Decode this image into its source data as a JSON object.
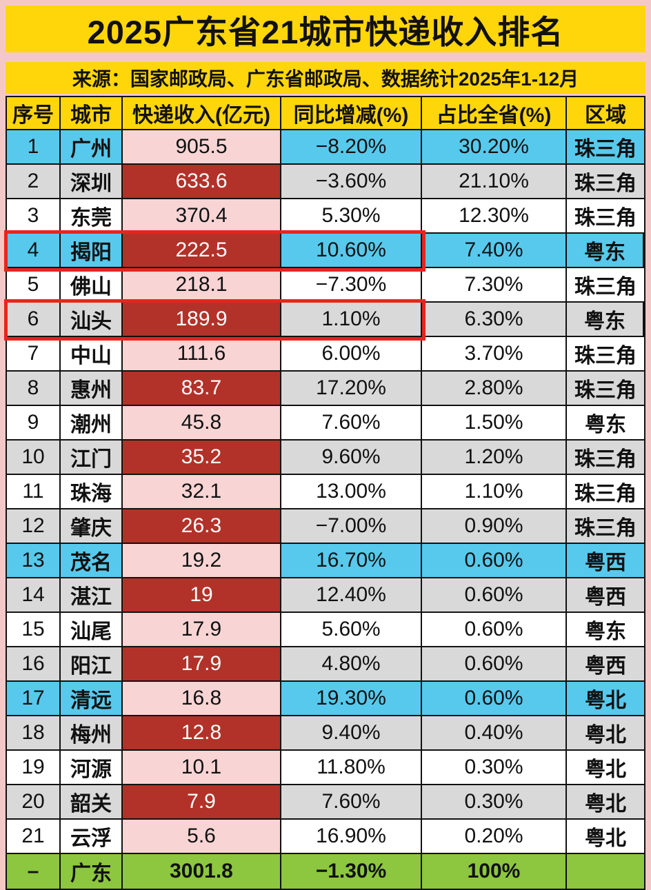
{
  "title": "2025广东省21城市快递收入排名",
  "source": "来源：国家邮政局、广东省邮政局、数据统计2025年1-12月",
  "colors": {
    "page_background": "#F5C8C8",
    "title_background": "#FFD60A",
    "row_cyan": "#57C9EC",
    "row_gray": "#D9D9D9",
    "row_white": "#FFFFFF",
    "revenue_pink": "#F8D4D4",
    "revenue_dark_red": "#B23229",
    "total_green": "#8DC63F",
    "highlight_border_red": "#E6251F"
  },
  "table": {
    "headers": [
      "序号",
      "城市",
      "快递收入(亿元)",
      "同比增减(%)",
      "占比全省(%)",
      "区域"
    ],
    "rows": [
      {
        "rank": "1",
        "city": "广州",
        "revenue": "905.5",
        "change": "−8.20%",
        "share": "30.20%",
        "region": "珠三角",
        "row_style": "cyan",
        "revenue_style": "pink",
        "highlight": false,
        "total": false
      },
      {
        "rank": "2",
        "city": "深圳",
        "revenue": "633.6",
        "change": "−3.60%",
        "share": "21.10%",
        "region": "珠三角",
        "row_style": "gray",
        "revenue_style": "red",
        "highlight": false,
        "total": false
      },
      {
        "rank": "3",
        "city": "东莞",
        "revenue": "370.4",
        "change": "5.30%",
        "share": "12.30%",
        "region": "珠三角",
        "row_style": "white",
        "revenue_style": "pink",
        "highlight": false,
        "total": false
      },
      {
        "rank": "4",
        "city": "揭阳",
        "revenue": "222.5",
        "change": "10.60%",
        "share": "7.40%",
        "region": "粤东",
        "row_style": "cyan",
        "revenue_style": "red",
        "highlight": true,
        "total": false
      },
      {
        "rank": "5",
        "city": "佛山",
        "revenue": "218.1",
        "change": "−7.30%",
        "share": "7.30%",
        "region": "珠三角",
        "row_style": "white",
        "revenue_style": "pink",
        "highlight": false,
        "total": false
      },
      {
        "rank": "6",
        "city": "汕头",
        "revenue": "189.9",
        "change": "1.10%",
        "share": "6.30%",
        "region": "粤东",
        "row_style": "gray",
        "revenue_style": "red",
        "highlight": true,
        "total": false
      },
      {
        "rank": "7",
        "city": "中山",
        "revenue": "111.6",
        "change": "6.00%",
        "share": "3.70%",
        "region": "珠三角",
        "row_style": "white",
        "revenue_style": "pink",
        "highlight": false,
        "total": false
      },
      {
        "rank": "8",
        "city": "惠州",
        "revenue": "83.7",
        "change": "17.20%",
        "share": "2.80%",
        "region": "珠三角",
        "row_style": "gray",
        "revenue_style": "red",
        "highlight": false,
        "total": false
      },
      {
        "rank": "9",
        "city": "潮州",
        "revenue": "45.8",
        "change": "7.60%",
        "share": "1.50%",
        "region": "粤东",
        "row_style": "white",
        "revenue_style": "pink",
        "highlight": false,
        "total": false
      },
      {
        "rank": "10",
        "city": "江门",
        "revenue": "35.2",
        "change": "9.60%",
        "share": "1.20%",
        "region": "珠三角",
        "row_style": "gray",
        "revenue_style": "red",
        "highlight": false,
        "total": false
      },
      {
        "rank": "11",
        "city": "珠海",
        "revenue": "32.1",
        "change": "13.00%",
        "share": "1.10%",
        "region": "珠三角",
        "row_style": "white",
        "revenue_style": "pink",
        "highlight": false,
        "total": false
      },
      {
        "rank": "12",
        "city": "肇庆",
        "revenue": "26.3",
        "change": "−7.00%",
        "share": "0.90%",
        "region": "珠三角",
        "row_style": "gray",
        "revenue_style": "red",
        "highlight": false,
        "total": false
      },
      {
        "rank": "13",
        "city": "茂名",
        "revenue": "19.2",
        "change": "16.70%",
        "share": "0.60%",
        "region": "粤西",
        "row_style": "cyan",
        "revenue_style": "pink",
        "highlight": false,
        "total": false
      },
      {
        "rank": "14",
        "city": "湛江",
        "revenue": "19",
        "change": "12.40%",
        "share": "0.60%",
        "region": "粤西",
        "row_style": "gray",
        "revenue_style": "red",
        "highlight": false,
        "total": false
      },
      {
        "rank": "15",
        "city": "汕尾",
        "revenue": "17.9",
        "change": "5.60%",
        "share": "0.60%",
        "region": "粤东",
        "row_style": "white",
        "revenue_style": "pink",
        "highlight": false,
        "total": false
      },
      {
        "rank": "16",
        "city": "阳江",
        "revenue": "17.9",
        "change": "4.80%",
        "share": "0.60%",
        "region": "粤西",
        "row_style": "gray",
        "revenue_style": "red",
        "highlight": false,
        "total": false
      },
      {
        "rank": "17",
        "city": "清远",
        "revenue": "16.8",
        "change": "19.30%",
        "share": "0.60%",
        "region": "粤北",
        "row_style": "cyan",
        "revenue_style": "pink",
        "highlight": false,
        "total": false
      },
      {
        "rank": "18",
        "city": "梅州",
        "revenue": "12.8",
        "change": "9.40%",
        "share": "0.40%",
        "region": "粤北",
        "row_style": "gray",
        "revenue_style": "red",
        "highlight": false,
        "total": false
      },
      {
        "rank": "19",
        "city": "河源",
        "revenue": "10.1",
        "change": "11.80%",
        "share": "0.30%",
        "region": "粤北",
        "row_style": "white",
        "revenue_style": "pink",
        "highlight": false,
        "total": false
      },
      {
        "rank": "20",
        "city": "韶关",
        "revenue": "7.9",
        "change": "7.60%",
        "share": "0.30%",
        "region": "粤北",
        "row_style": "gray",
        "revenue_style": "red",
        "highlight": false,
        "total": false
      },
      {
        "rank": "21",
        "city": "云浮",
        "revenue": "5.6",
        "change": "16.90%",
        "share": "0.20%",
        "region": "粤北",
        "row_style": "white",
        "revenue_style": "pink",
        "highlight": false,
        "total": false
      },
      {
        "rank": "–",
        "city": "广东",
        "revenue": "3001.8",
        "change": "−1.30%",
        "share": "100%",
        "region": "",
        "row_style": "green",
        "revenue_style": "green",
        "highlight": false,
        "total": true
      }
    ]
  },
  "chart_data": {
    "type": "table",
    "title": "2025广东省21城市快递收入排名",
    "subtitle": "来源：国家邮政局、广东省邮政局、数据统计2025年1-12月",
    "columns": [
      "序号",
      "城市",
      "快递收入(亿元)",
      "同比增减(%)",
      "占比全省(%)",
      "区域"
    ],
    "rows": [
      [
        1,
        "广州",
        905.5,
        -8.2,
        30.2,
        "珠三角"
      ],
      [
        2,
        "深圳",
        633.6,
        -3.6,
        21.1,
        "珠三角"
      ],
      [
        3,
        "东莞",
        370.4,
        5.3,
        12.3,
        "珠三角"
      ],
      [
        4,
        "揭阳",
        222.5,
        10.6,
        7.4,
        "粤东"
      ],
      [
        5,
        "佛山",
        218.1,
        -7.3,
        7.3,
        "珠三角"
      ],
      [
        6,
        "汕头",
        189.9,
        1.1,
        6.3,
        "粤东"
      ],
      [
        7,
        "中山",
        111.6,
        6.0,
        3.7,
        "珠三角"
      ],
      [
        8,
        "惠州",
        83.7,
        17.2,
        2.8,
        "珠三角"
      ],
      [
        9,
        "潮州",
        45.8,
        7.6,
        1.5,
        "粤东"
      ],
      [
        10,
        "江门",
        35.2,
        9.6,
        1.2,
        "珠三角"
      ],
      [
        11,
        "珠海",
        32.1,
        13.0,
        1.1,
        "珠三角"
      ],
      [
        12,
        "肇庆",
        26.3,
        -7.0,
        0.9,
        "珠三角"
      ],
      [
        13,
        "茂名",
        19.2,
        16.7,
        0.6,
        "粤西"
      ],
      [
        14,
        "湛江",
        19.0,
        12.4,
        0.6,
        "粤西"
      ],
      [
        15,
        "汕尾",
        17.9,
        5.6,
        0.6,
        "粤东"
      ],
      [
        16,
        "阳江",
        17.9,
        4.8,
        0.6,
        "粤西"
      ],
      [
        17,
        "清远",
        16.8,
        19.3,
        0.6,
        "粤北"
      ],
      [
        18,
        "梅州",
        12.8,
        9.4,
        0.4,
        "粤北"
      ],
      [
        19,
        "河源",
        10.1,
        11.8,
        0.3,
        "粤北"
      ],
      [
        20,
        "韶关",
        7.9,
        7.6,
        0.3,
        "粤北"
      ],
      [
        21,
        "云浮",
        5.6,
        16.9,
        0.2,
        "粤北"
      ]
    ],
    "total_row": [
      "–",
      "广东",
      3001.8,
      -1.3,
      100,
      ""
    ],
    "highlighted_rows": [
      4,
      6
    ],
    "legend_position": "none",
    "grid": true
  }
}
